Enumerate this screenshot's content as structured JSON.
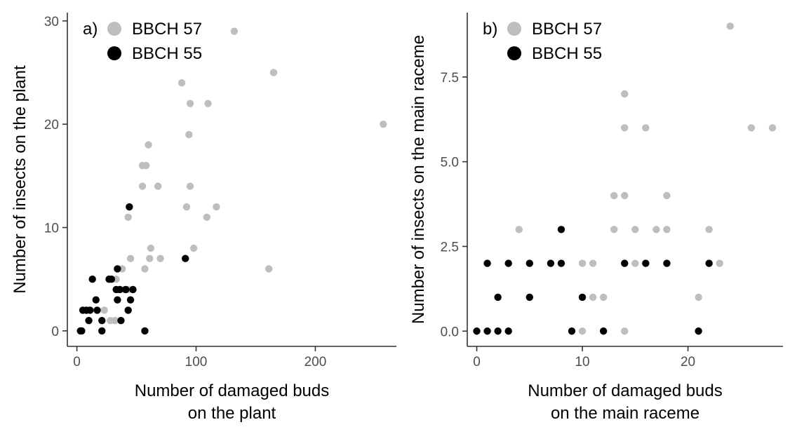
{
  "colors": {
    "bbch57": "#bebebe",
    "bbch55": "#000000",
    "axis": "#333333",
    "tick_text": "#4d4d4d"
  },
  "chart_data": [
    {
      "type": "scatter",
      "panel_tag": "a)",
      "xlabel_lines": [
        "Number of damaged buds",
        "on the plant"
      ],
      "ylabel": "Number of insects on the plant",
      "xlim": [
        -8,
        268
      ],
      "ylim": [
        -1.5,
        30.8
      ],
      "xticks": [
        0,
        100,
        200
      ],
      "xtick_labels": [
        "0",
        "100",
        "200"
      ],
      "yticks": [
        0,
        10,
        20,
        30
      ],
      "ytick_labels": [
        "0",
        "10",
        "20",
        "30"
      ],
      "legend_position": "top-left",
      "series": [
        {
          "name": "BBCH 57",
          "color": "#bebebe",
          "points": [
            [
              132,
              29
            ],
            [
              165,
              25
            ],
            [
              257,
              20
            ],
            [
              88,
              24
            ],
            [
              95,
              22
            ],
            [
              110,
              22
            ],
            [
              94,
              19
            ],
            [
              60,
              18
            ],
            [
              55,
              16
            ],
            [
              58,
              16
            ],
            [
              55,
              14
            ],
            [
              68,
              14
            ],
            [
              95,
              14
            ],
            [
              92,
              12
            ],
            [
              117,
              12
            ],
            [
              43,
              11
            ],
            [
              109,
              11
            ],
            [
              98,
              8
            ],
            [
              62,
              8
            ],
            [
              45,
              7
            ],
            [
              61,
              7
            ],
            [
              70,
              7
            ],
            [
              161,
              6
            ],
            [
              57,
              6
            ],
            [
              38,
              6
            ],
            [
              33,
              5
            ],
            [
              27,
              5
            ],
            [
              40,
              4
            ],
            [
              43,
              4
            ],
            [
              23,
              2
            ],
            [
              28,
              1
            ],
            [
              32,
              1
            ]
          ]
        },
        {
          "name": "BBCH 55",
          "color": "#000000",
          "points": [
            [
              44,
              12
            ],
            [
              91,
              7
            ],
            [
              34,
              6
            ],
            [
              13,
              5
            ],
            [
              27,
              5
            ],
            [
              29,
              5
            ],
            [
              33,
              4
            ],
            [
              36,
              4
            ],
            [
              41,
              4
            ],
            [
              47,
              4
            ],
            [
              16,
              3
            ],
            [
              34,
              3
            ],
            [
              45,
              3
            ],
            [
              5,
              2
            ],
            [
              8,
              2
            ],
            [
              11,
              2
            ],
            [
              17,
              2
            ],
            [
              43,
              2
            ],
            [
              10,
              1
            ],
            [
              21,
              1
            ],
            [
              37,
              1
            ],
            [
              3,
              0
            ],
            [
              4,
              0
            ],
            [
              21,
              0
            ],
            [
              57,
              0
            ]
          ]
        }
      ]
    },
    {
      "type": "scatter",
      "panel_tag": "b)",
      "xlabel_lines": [
        "Number of damaged buds",
        "on the main raceme"
      ],
      "ylabel": "Number of insects on the main raceme",
      "xlim": [
        -0.9,
        29
      ],
      "ylim": [
        -0.45,
        9.4
      ],
      "xticks": [
        0,
        10,
        20
      ],
      "xtick_labels": [
        "0",
        "10",
        "20"
      ],
      "yticks": [
        0,
        2.5,
        5,
        7.5
      ],
      "ytick_labels": [
        "0.0",
        "2.5",
        "5.0",
        "7.5"
      ],
      "legend_position": "top-left",
      "series": [
        {
          "name": "BBCH 57",
          "color": "#bebebe",
          "points": [
            [
              24,
              9
            ],
            [
              14,
              7
            ],
            [
              14,
              6
            ],
            [
              16,
              6
            ],
            [
              26,
              6
            ],
            [
              28,
              6
            ],
            [
              13,
              4
            ],
            [
              14,
              4
            ],
            [
              18,
              4
            ],
            [
              4,
              3
            ],
            [
              13,
              3
            ],
            [
              15,
              3
            ],
            [
              17,
              3
            ],
            [
              18,
              3
            ],
            [
              22,
              3
            ],
            [
              10,
              2
            ],
            [
              11,
              2
            ],
            [
              15,
              2
            ],
            [
              23,
              2
            ],
            [
              11,
              1
            ],
            [
              12,
              1
            ],
            [
              21,
              1
            ],
            [
              9,
              0
            ],
            [
              10,
              0
            ],
            [
              14,
              0
            ]
          ]
        },
        {
          "name": "BBCH 55",
          "color": "#000000",
          "points": [
            [
              8,
              3
            ],
            [
              1,
              2
            ],
            [
              3,
              2
            ],
            [
              5,
              2
            ],
            [
              7,
              2
            ],
            [
              8,
              2
            ],
            [
              14,
              2
            ],
            [
              16,
              2
            ],
            [
              18,
              2
            ],
            [
              22,
              2
            ],
            [
              2,
              1
            ],
            [
              5,
              1
            ],
            [
              10,
              1
            ],
            [
              0,
              0
            ],
            [
              1,
              0
            ],
            [
              2,
              0
            ],
            [
              3,
              0
            ],
            [
              9,
              0
            ],
            [
              12,
              0
            ],
            [
              21,
              0
            ]
          ]
        }
      ]
    }
  ]
}
